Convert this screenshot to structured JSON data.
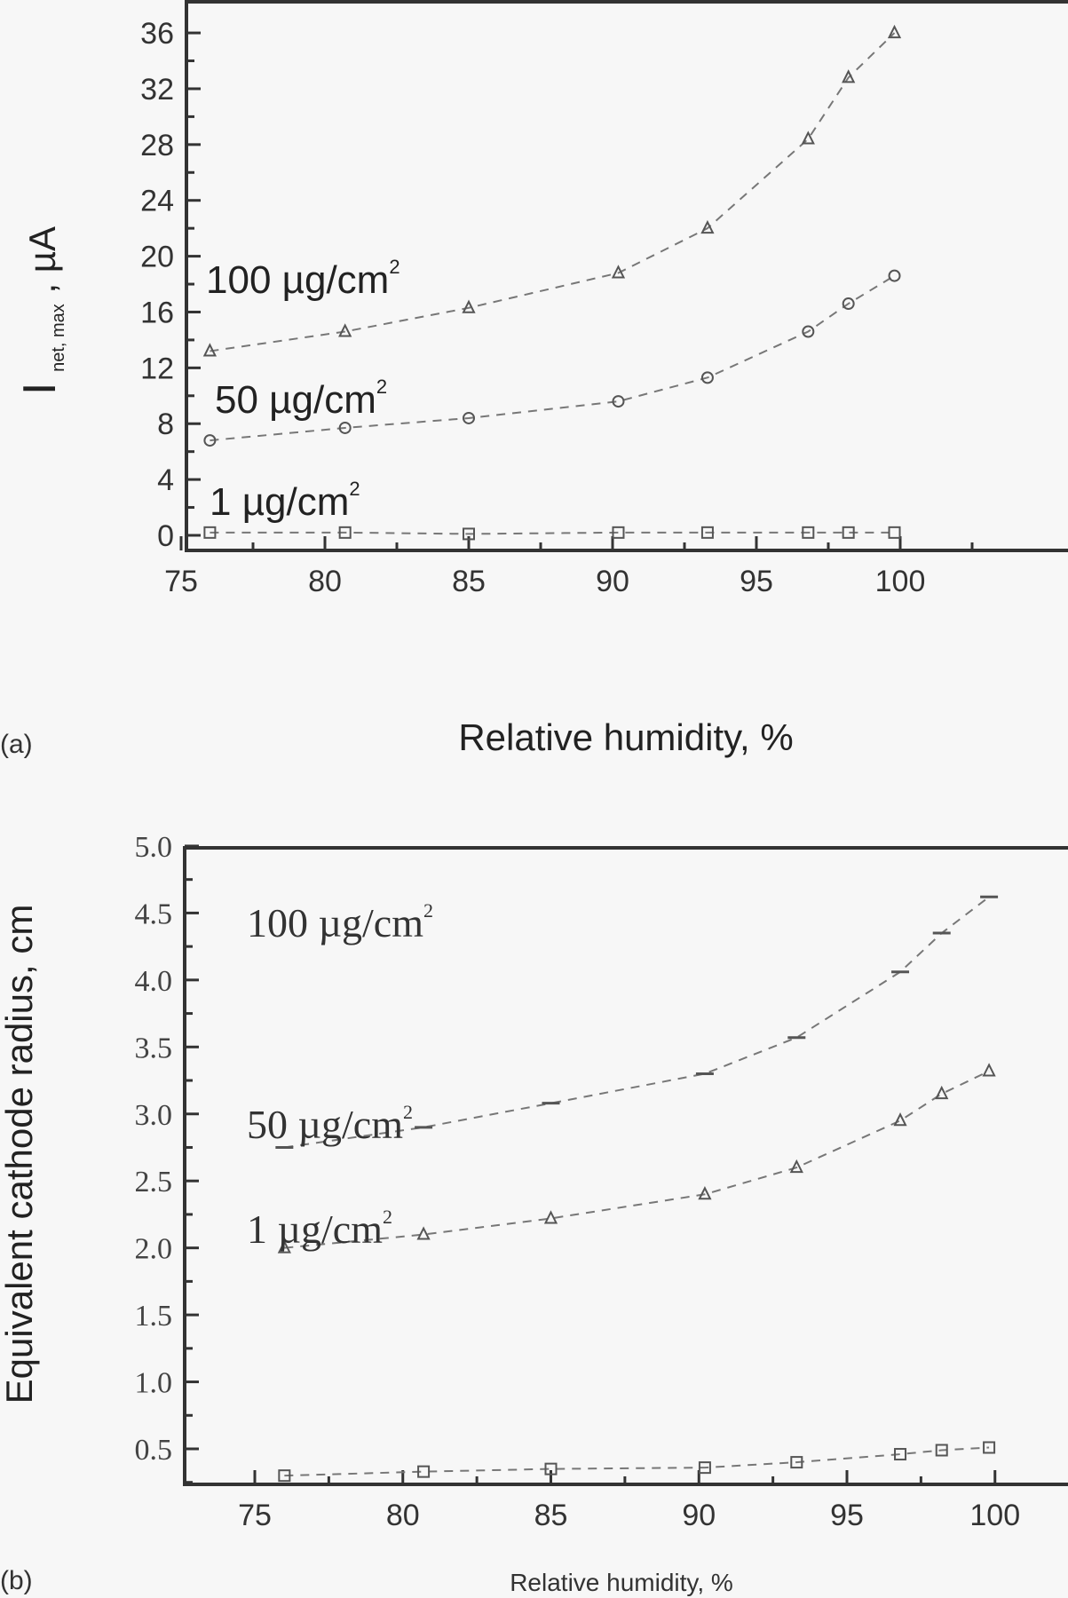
{
  "chart_data": [
    {
      "panel": "(a)",
      "type": "line",
      "title": "",
      "xlabel": "Relative humidity, %",
      "ylabel": "I_net, max, µA",
      "ylabel_main": "I",
      "ylabel_sub": "net, max",
      "ylabel_unit": ", µA",
      "xlim": [
        74.5,
        101.5
      ],
      "ylim": [
        -1,
        38
      ],
      "xticks": [
        75,
        80,
        85,
        90,
        95,
        100
      ],
      "yticks": [
        0,
        4,
        8,
        12,
        16,
        20,
        24,
        28,
        32,
        36
      ],
      "grid": false,
      "legend_position": "inline annotations",
      "x": [
        76,
        80.7,
        85,
        90.2,
        93.3,
        96.8,
        98.2,
        99.8
      ],
      "series": [
        {
          "name": "100 µg/cm²",
          "marker": "triangle",
          "values": [
            13.2,
            14.6,
            16.3,
            18.8,
            22.0,
            28.4,
            32.8,
            36.0
          ]
        },
        {
          "name": "50 µg/cm²",
          "marker": "circle",
          "values": [
            6.8,
            7.7,
            8.4,
            9.6,
            11.3,
            14.6,
            16.6,
            18.6
          ]
        },
        {
          "name": "1 µg/cm²",
          "marker": "square",
          "values": [
            0.2,
            0.2,
            0.1,
            0.2,
            0.2,
            0.2,
            0.2,
            0.2
          ]
        }
      ],
      "annotations": [
        {
          "text": "100 µg/cm",
          "sup": "2"
        },
        {
          "text": "50 µg/cm",
          "sup": "2"
        },
        {
          "text": "1 µg/cm",
          "sup": "2"
        }
      ]
    },
    {
      "panel": "(b)",
      "type": "line",
      "title": "",
      "xlabel": "Relative humidity, %",
      "ylabel": "Equivalent cathode radius, cm",
      "xlim": [
        73.2,
        101.5
      ],
      "ylim": [
        0.24,
        5.0
      ],
      "xticks": [
        75,
        80,
        85,
        90,
        95,
        100
      ],
      "yticks": [
        0.5,
        1.0,
        1.5,
        2.0,
        2.5,
        3.0,
        3.5,
        4.0,
        4.5,
        5.0
      ],
      "grid": false,
      "legend_position": "inline annotations",
      "x": [
        76,
        80.7,
        85,
        90.2,
        93.3,
        96.8,
        98.2,
        99.8
      ],
      "series": [
        {
          "name": "100 µg/cm²",
          "marker": "dash",
          "values": [
            2.75,
            2.9,
            3.08,
            3.3,
            3.57,
            4.06,
            4.35,
            4.62
          ]
        },
        {
          "name": "50 µg/cm²",
          "marker": "triangle",
          "values": [
            2.0,
            2.1,
            2.22,
            2.4,
            2.6,
            2.95,
            3.15,
            3.32
          ]
        },
        {
          "name": "1 µg/cm²",
          "marker": "square",
          "values": [
            0.3,
            0.33,
            0.35,
            0.36,
            0.4,
            0.46,
            0.49,
            0.51
          ]
        }
      ],
      "annotations": [
        {
          "text": "100 µg/cm",
          "sup": "2"
        },
        {
          "text": "50 µg/cm",
          "sup": "2"
        },
        {
          "text": "1 µg/cm",
          "sup": "2"
        }
      ]
    }
  ],
  "colors": {
    "background": "#f7f7f7",
    "axis": "#333333",
    "series_line": "#777777",
    "marker": "#555555"
  }
}
